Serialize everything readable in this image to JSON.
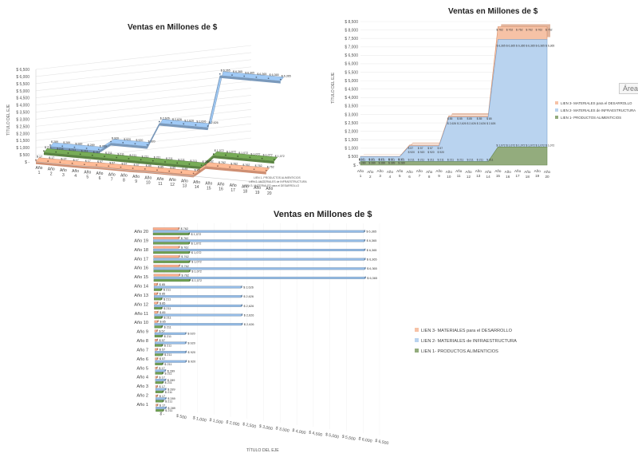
{
  "area_label": "Área",
  "chart_data": [
    {
      "type": "area",
      "title": "Ventas en Millones de $",
      "variant": "3d-line",
      "ylabel": "TÍTULO DEL EJE",
      "ylim": [
        0,
        6500
      ],
      "yticks": [
        "$ -",
        "$ 500",
        "$ 1,000",
        "$ 1,500",
        "$ 2,000",
        "$ 2,500",
        "$ 3,000",
        "$ 3,500",
        "$ 4,000",
        "$ 4,500",
        "$ 5,000",
        "$ 5,500",
        "$ 6,000",
        "$ 6,500"
      ],
      "categories": [
        "Año 1",
        "Año 2",
        "Año 3",
        "Año 4",
        "Año 5",
        "Año 6",
        "Año 7",
        "Año 8",
        "Año 9",
        "Año 10",
        "Año 11",
        "Año 12",
        "Año 13",
        "Año 14",
        "Año 15",
        "Año 16",
        "Año 17",
        "Año 18",
        "Año 19",
        "Año 20"
      ],
      "series": [
        {
          "name": "LIEN 1- PRODUCTOS ALIMENTICIOS",
          "color": "#6a9a4e",
          "values": [
            211,
            211,
            211,
            211,
            211,
            211,
            211,
            211,
            211,
            211,
            211,
            211,
            211,
            211,
            1072,
            1072,
            1072,
            1072,
            1072,
            1072
          ],
          "labels": [
            "$ 211",
            "$ 211",
            "$ 211",
            "$ 211",
            "$ 211",
            "$ 211",
            "$ 211",
            "$ 211",
            "$ 211",
            "$ 211",
            "$ 211",
            "$ 211",
            "$ 211",
            "$ 211",
            "$ 1,072",
            "$ 1,072",
            "$ 1,072",
            "$ 1,072",
            "$ 1,072",
            "$ 1,072"
          ]
        },
        {
          "name": "LIEN 2- MATERIALES de INFRAESTRUCTURA",
          "color": "#8fb4dc",
          "values": [
            289,
            289,
            289,
            289,
            289,
            920,
            920,
            920,
            920,
            2626,
            2626,
            2626,
            2626,
            2626,
            6365,
            6365,
            6365,
            6365,
            6365,
            6365
          ],
          "labels": [
            "$ 289",
            "$ 289",
            "$ 289",
            "$ 289",
            "$ 289",
            "$ 920",
            "$ 920",
            "$ 920",
            "$ 920",
            "$ 2,626",
            "$ 2,626",
            "$ 2,626",
            "$ 2,626",
            "$ 2,626",
            "$ 6,365",
            "$ 6,365",
            "$ 6,365",
            "$ 6,365",
            "$ 6,365",
            "$ 6,365"
          ]
        },
        {
          "name": "LIEN 3- MATERIALES para el DESARROLLO",
          "color": "#f2a786",
          "values": [
            17,
            17,
            17,
            17,
            17,
            57,
            57,
            57,
            57,
            85,
            85,
            85,
            85,
            85,
            762,
            762,
            762,
            762,
            762,
            762
          ],
          "labels": [
            "$ 17",
            "$ 17",
            "$ 17",
            "$ 17",
            "$ 17",
            "$ 57",
            "$ 57",
            "$ 57",
            "$ 57",
            "$ 85",
            "$ 85",
            "$ 85",
            "$ 85",
            "$ 85",
            "$ 762",
            "$ 762",
            "$ 762",
            "$ 762",
            "$ 762",
            "$ 762"
          ]
        }
      ]
    },
    {
      "type": "area",
      "title": "Ventas en Millones de $",
      "variant": "stacked-area",
      "ylabel": "TÍTULO DEL EJE",
      "ylim": [
        0,
        8500
      ],
      "yticks": [
        "$ -",
        "$ 500",
        "$ 1,000",
        "$ 1,500",
        "$ 2,000",
        "$ 2,500",
        "$ 3,000",
        "$ 3,500",
        "$ 4,000",
        "$ 4,500",
        "$ 5,000",
        "$ 5,500",
        "$ 6,000",
        "$ 6,500",
        "$ 7,000",
        "$ 7,500",
        "$ 8,000",
        "$ 8,500"
      ],
      "categories": [
        "Año 1",
        "Año 2",
        "Año 3",
        "Año 4",
        "Año 5",
        "Año 6",
        "Año 7",
        "Año 8",
        "Año 9",
        "Año 10",
        "Año 11",
        "Año 12",
        "Año 13",
        "Año 14",
        "Año 15",
        "Año 16",
        "Año 17",
        "Año 18",
        "Año 19",
        "Año 20"
      ],
      "legend": [
        "LIEN 3- MATERIALES para el DESARROLLO",
        "LIEN 2- MATERIALES de INFRAESTRUCTURA",
        "LIEN 1- PRODUCTOS ALIMENTICIOS"
      ]
    },
    {
      "type": "bar",
      "title": "Ventas en Millones de $",
      "variant": "horizontal-3d",
      "xlabel": "TÍTULO DEL EJE",
      "xlim": [
        0,
        6500
      ],
      "xticks": [
        "$ -",
        "$ 500",
        "$ 1,000",
        "$ 1,500",
        "$ 2,000",
        "$ 2,500",
        "$ 3,000",
        "$ 3,500",
        "$ 4,000",
        "$ 4,500",
        "$ 5,000",
        "$ 5,500",
        "$ 6,000",
        "$ 6,500"
      ],
      "legend": [
        "LIEN 3- MATERIALES para el DESARROLLO",
        "LIEN 2- MATERIALES de INFRAESTRUCTURA",
        "LIEN 1- PRODUCTOS ALIMENTICIOS"
      ]
    }
  ]
}
